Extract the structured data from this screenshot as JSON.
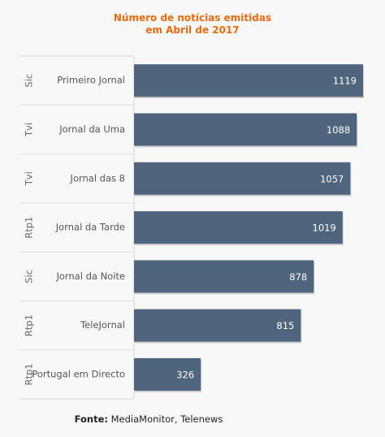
{
  "chart_data": {
    "type": "bar",
    "orientation": "horizontal",
    "title": "Número de notícias emitidas",
    "subtitle": "em Abril de 2017",
    "groups": [
      "Sic",
      "Tvi",
      "Tvi",
      "Rtp1",
      "Sic",
      "Rtp1",
      "Rtp1"
    ],
    "categories": [
      "Primeiro Jornal",
      "Jornal da Uma",
      "Jornal das 8",
      "Jornal da Tarde",
      "Jornal da Noite",
      "TeleJornal",
      "Portugal em Directo"
    ],
    "values": [
      1119,
      1088,
      1057,
      1019,
      878,
      815,
      326
    ],
    "xlim": [
      0,
      1119
    ],
    "grid": false,
    "colors": {
      "bar": "#4f647d",
      "title": "#ee6a0c",
      "value_label": "#ffffff"
    }
  },
  "source": {
    "label": "Fonte:",
    "text": " MediaMonitor, Telenews"
  }
}
